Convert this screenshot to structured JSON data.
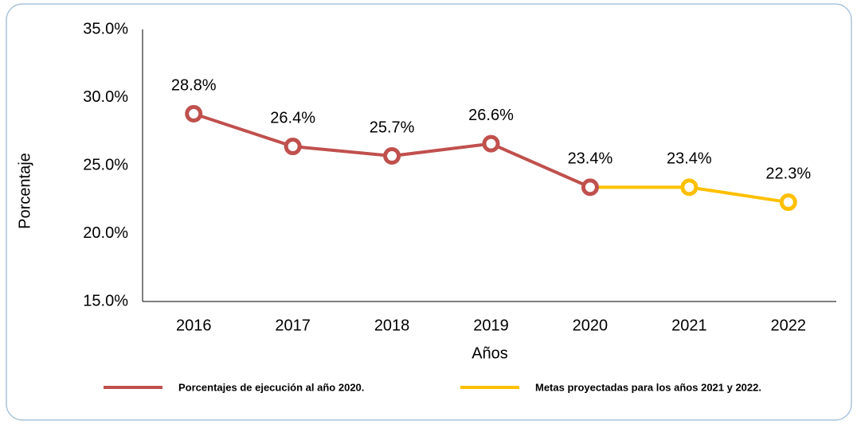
{
  "chart_data": {
    "type": "line",
    "categories": [
      "2016",
      "2017",
      "2018",
      "2019",
      "2020",
      "2021",
      "2022"
    ],
    "series": [
      {
        "name": "Porcentajes de ejecución al año 2020.",
        "color": "#c0504d",
        "values": [
          28.8,
          26.4,
          25.7,
          26.6,
          23.4,
          null,
          null
        ],
        "value_labels": [
          "28.8%",
          "26.4%",
          "25.7%",
          "26.6%",
          "23.4%",
          null,
          null
        ]
      },
      {
        "name": "Metas proyectadas para los años 2021 y 2022.",
        "color": "#ffc000",
        "values": [
          null,
          null,
          null,
          null,
          23.4,
          23.4,
          22.3
        ],
        "value_labels": [
          null,
          null,
          null,
          null,
          null,
          "23.4%",
          "22.3%"
        ]
      }
    ],
    "xlabel": "Años",
    "ylabel": "Porcentaje",
    "ylim": [
      15,
      35
    ],
    "yticks": [
      {
        "value": 15,
        "label": "15.0%"
      },
      {
        "value": 20,
        "label": "20.0%"
      },
      {
        "value": 25,
        "label": "25.0%"
      },
      {
        "value": 30,
        "label": "30.0%"
      },
      {
        "value": 35,
        "label": "35.0%"
      }
    ],
    "grid": false,
    "legend": "bottom"
  }
}
